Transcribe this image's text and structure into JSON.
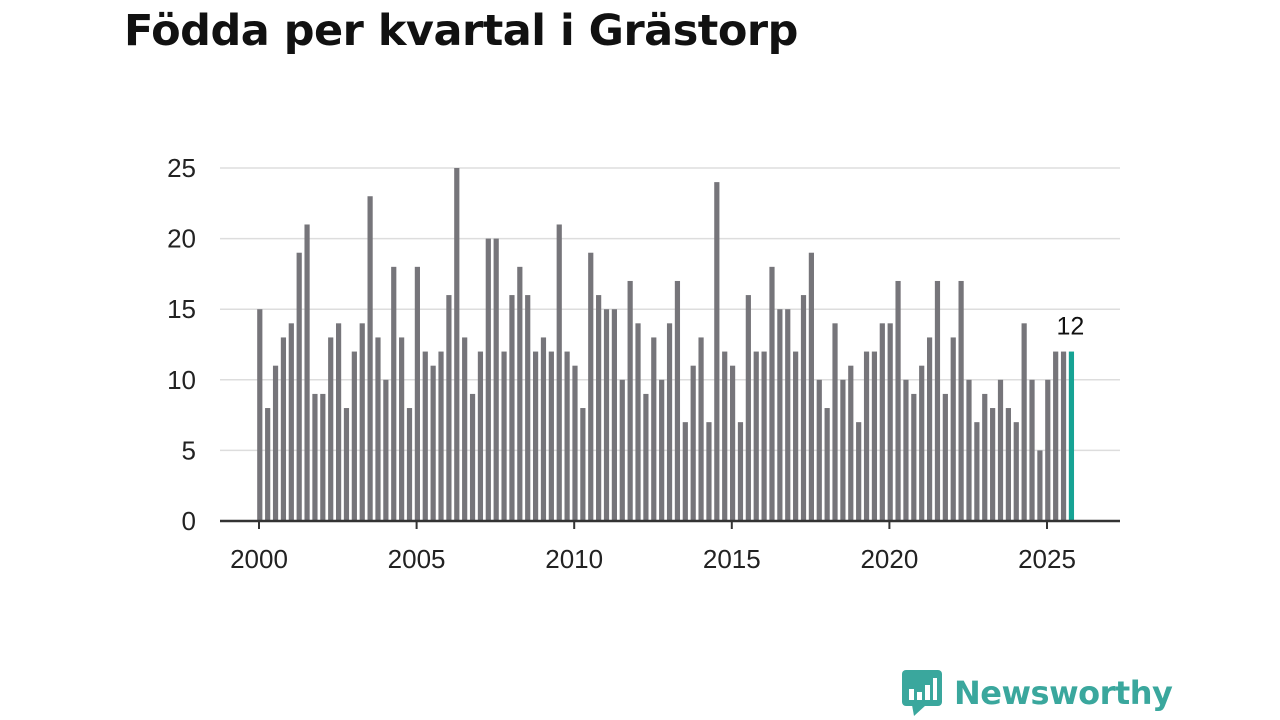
{
  "title": "Födda per kvartal i Grästorp",
  "brand": {
    "name": "Newsworthy"
  },
  "colors": {
    "bar": "#76757a",
    "highlight": "#16a394",
    "grid": "#dddddd",
    "axis": "#333333"
  },
  "chart_data": {
    "type": "bar",
    "title": "Födda per kvartal i Grästorp",
    "xlabel": "",
    "ylabel": "",
    "ylim": [
      0,
      25
    ],
    "yticks": [
      0,
      5,
      10,
      15,
      20,
      25
    ],
    "xticks": [
      2000,
      2005,
      2010,
      2015,
      2020,
      2025
    ],
    "grid": true,
    "legend": "none",
    "highlight_label": "12",
    "start_year": 2000,
    "periods_per_year": 4,
    "values": [
      15,
      8,
      11,
      13,
      14,
      19,
      21,
      9,
      9,
      13,
      14,
      8,
      12,
      14,
      23,
      13,
      10,
      18,
      13,
      8,
      18,
      12,
      11,
      12,
      16,
      25,
      13,
      9,
      12,
      20,
      20,
      12,
      16,
      18,
      16,
      12,
      13,
      12,
      21,
      12,
      11,
      8,
      19,
      16,
      15,
      15,
      10,
      17,
      14,
      9,
      13,
      10,
      14,
      17,
      7,
      11,
      13,
      7,
      24,
      12,
      11,
      7,
      16,
      12,
      12,
      18,
      15,
      15,
      12,
      16,
      19,
      10,
      8,
      14,
      10,
      11,
      7,
      12,
      12,
      14,
      14,
      17,
      10,
      9,
      11,
      13,
      17,
      9,
      13,
      17,
      10,
      7,
      9,
      8,
      10,
      8,
      7,
      14,
      10,
      5,
      10,
      12,
      12,
      12
    ]
  }
}
